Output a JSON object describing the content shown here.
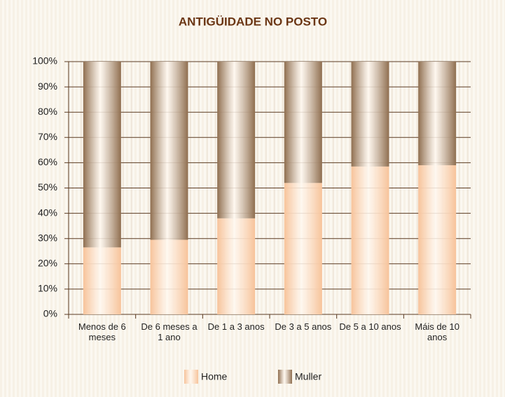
{
  "chart_data": {
    "type": "stacked_bar",
    "title": "ANTIGÜIDADE NO POSTO",
    "categories": [
      "Menos de 6 meses",
      "De 6 meses a 1 ano",
      "De 1 a 3 anos",
      "De 3 a 5 anos",
      "De 5 a 10 anos",
      "Máis de 10 anos"
    ],
    "series": [
      {
        "name": "Home",
        "color": "#f7c39a",
        "values": [
          26.5,
          29.5,
          38,
          52,
          58.5,
          59
        ]
      },
      {
        "name": "Muller",
        "color": "#8f6e4f",
        "values": [
          73.5,
          70.5,
          62,
          48,
          41.5,
          41
        ]
      }
    ],
    "ylim": [
      0,
      100
    ],
    "yticks": [
      {
        "value": 0,
        "label": "0%"
      },
      {
        "value": 10,
        "label": "10%"
      },
      {
        "value": 20,
        "label": "20%"
      },
      {
        "value": 30,
        "label": "30%"
      },
      {
        "value": 40,
        "label": "40%"
      },
      {
        "value": 50,
        "label": "50%"
      },
      {
        "value": 60,
        "label": "60%"
      },
      {
        "value": 70,
        "label": "70%"
      },
      {
        "value": 80,
        "label": "80%"
      },
      {
        "value": 90,
        "label": "90%"
      },
      {
        "value": 100,
        "label": "100%"
      }
    ],
    "grid": true,
    "legend": "bottom"
  }
}
